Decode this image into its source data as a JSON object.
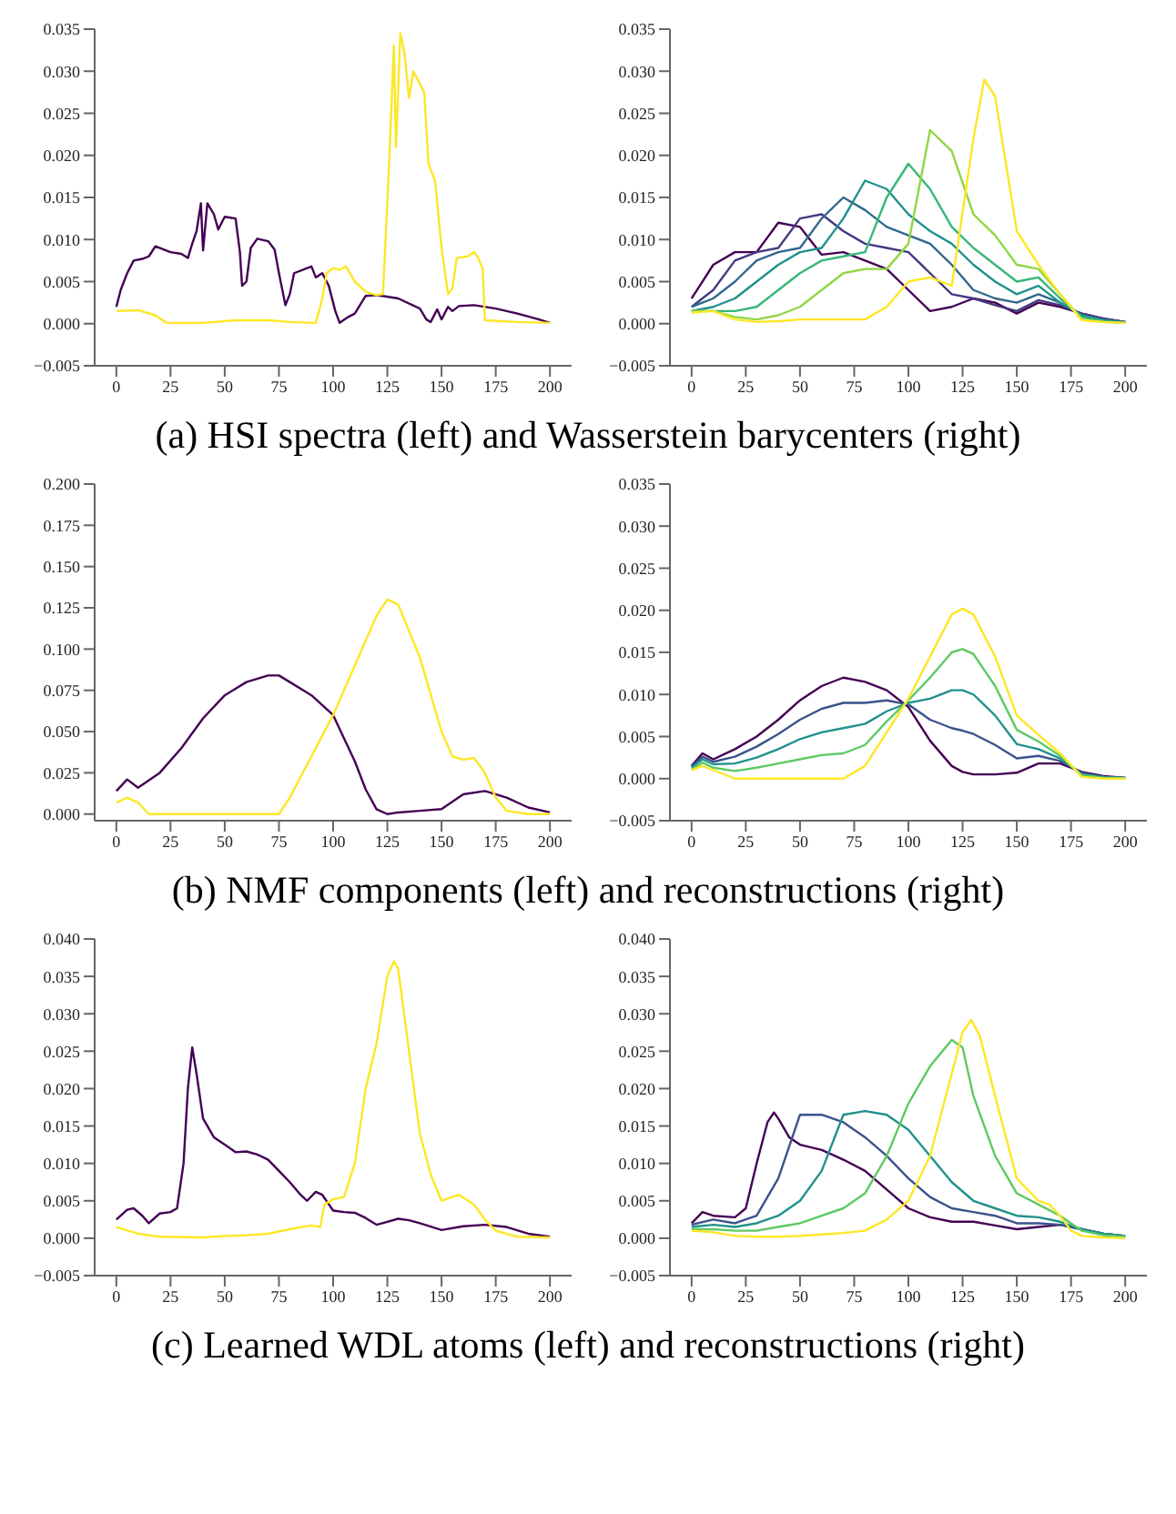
{
  "chart_data": [
    {
      "type": "line",
      "annotations": [
        "(a) HSI spectra (left) and Wasserstein barycenters (right)"
      ],
      "xlim": [
        -10,
        210
      ],
      "xticks": [
        0,
        25,
        50,
        75,
        100,
        125,
        150,
        175,
        200
      ],
      "ylim": [
        -0.005,
        0.035
      ],
      "yticks": [
        {
          "value": -0.005,
          "label": "−0.005"
        },
        {
          "value": 0,
          "label": "0.000"
        },
        {
          "value": 0.005,
          "label": "0.005"
        },
        {
          "value": 0.01,
          "label": "0.010"
        },
        {
          "value": 0.015,
          "label": "0.015"
        },
        {
          "value": 0.02,
          "label": "0.020"
        },
        {
          "value": 0.025,
          "label": "0.025"
        },
        {
          "value": 0.03,
          "label": "0.030"
        },
        {
          "value": 0.035,
          "label": "0.035"
        }
      ],
      "marker": "none",
      "series": [
        {
          "color": "#440154",
          "x": [
            0,
            2,
            5,
            8,
            12,
            15,
            18,
            22,
            25,
            30,
            33,
            35,
            37,
            39,
            40,
            42,
            45,
            47,
            50,
            55,
            57,
            58,
            60,
            62,
            65,
            70,
            73,
            75,
            78,
            80,
            82,
            87,
            90,
            92,
            95,
            98,
            101,
            103,
            107,
            110,
            115,
            120,
            130,
            140,
            143,
            145,
            148,
            150,
            153,
            155,
            158,
            165,
            175,
            185,
            195,
            200
          ],
          "values": [
            0.002,
            0.004,
            0.006,
            0.0075,
            0.0077,
            0.008,
            0.0092,
            0.0088,
            0.0085,
            0.0083,
            0.0078,
            0.0095,
            0.011,
            0.0143,
            0.0087,
            0.0143,
            0.013,
            0.0112,
            0.0127,
            0.0125,
            0.0085,
            0.0045,
            0.005,
            0.009,
            0.0101,
            0.0098,
            0.0088,
            0.006,
            0.0022,
            0.0035,
            0.006,
            0.0065,
            0.0068,
            0.0055,
            0.006,
            0.0045,
            0.0015,
            0.0001,
            0.0008,
            0.0012,
            0.0033,
            0.0034,
            0.003,
            0.0018,
            0.0005,
            0.0002,
            0.0017,
            0.0005,
            0.002,
            0.0015,
            0.0021,
            0.0022,
            0.0018,
            0.0012,
            0.0005,
            0.0001
          ]
        },
        {
          "color": "#fde725",
          "x": [
            0,
            10,
            18,
            23,
            40,
            55,
            70,
            80,
            92,
            95,
            97,
            100,
            103,
            106,
            110,
            115,
            120,
            123,
            126,
            128,
            129,
            131,
            133,
            135,
            137,
            140,
            142,
            144,
            147,
            150,
            153,
            155,
            157,
            162,
            165,
            167,
            169,
            170,
            185,
            200
          ],
          "values": [
            0.0015,
            0.0016,
            0.001,
            0.0001,
            0.0001,
            0.0004,
            0.0004,
            0.0002,
            0.0001,
            0.003,
            0.006,
            0.0066,
            0.0064,
            0.0068,
            0.005,
            0.0038,
            0.0034,
            0.0035,
            0.02,
            0.033,
            0.021,
            0.0345,
            0.032,
            0.0268,
            0.03,
            0.0285,
            0.0275,
            0.019,
            0.017,
            0.009,
            0.0035,
            0.0042,
            0.0078,
            0.008,
            0.0085,
            0.0078,
            0.0065,
            0.0004,
            0.0002,
            0.0001
          ]
        }
      ]
    },
    {
      "type": "line",
      "xlim": [
        -10,
        210
      ],
      "xticks": [
        0,
        25,
        50,
        75,
        100,
        125,
        150,
        175,
        200
      ],
      "ylim": [
        -0.005,
        0.035
      ],
      "yticks": [
        {
          "value": -0.005,
          "label": "−0.005"
        },
        {
          "value": 0,
          "label": "0.000"
        },
        {
          "value": 0.005,
          "label": "0.005"
        },
        {
          "value": 0.01,
          "label": "0.010"
        },
        {
          "value": 0.015,
          "label": "0.015"
        },
        {
          "value": 0.02,
          "label": "0.020"
        },
        {
          "value": 0.025,
          "label": "0.025"
        },
        {
          "value": 0.03,
          "label": "0.030"
        },
        {
          "value": 0.035,
          "label": "0.035"
        }
      ],
      "marker": "none",
      "x": [
        0,
        10,
        20,
        30,
        40,
        50,
        60,
        70,
        80,
        90,
        100,
        110,
        120,
        130,
        140,
        150,
        160,
        170,
        180,
        190,
        200
      ],
      "series": [
        {
          "color": "#440154",
          "values": [
            0.003,
            0.007,
            0.0085,
            0.0085,
            0.012,
            0.0115,
            0.0082,
            0.0085,
            0.0075,
            0.0065,
            0.004,
            0.0015,
            0.002,
            0.003,
            0.0025,
            0.0012,
            0.0025,
            0.002,
            0.0012,
            0.0006,
            0.0002
          ]
        },
        {
          "color": "#443983",
          "values": [
            0.002,
            0.004,
            0.0075,
            0.0085,
            0.009,
            0.0125,
            0.013,
            0.011,
            0.0095,
            0.009,
            0.0085,
            0.006,
            0.0035,
            0.003,
            0.0022,
            0.0015,
            0.0028,
            0.0022,
            0.0012,
            0.0006,
            0.0002
          ]
        },
        {
          "color": "#31688e",
          "values": [
            0.002,
            0.003,
            0.005,
            0.0075,
            0.0085,
            0.009,
            0.0125,
            0.015,
            0.0135,
            0.0115,
            0.0105,
            0.0095,
            0.007,
            0.004,
            0.003,
            0.0025,
            0.0035,
            0.0025,
            0.001,
            0.0005,
            0.0002
          ]
        },
        {
          "color": "#21918c",
          "values": [
            0.0015,
            0.002,
            0.003,
            0.005,
            0.007,
            0.0085,
            0.009,
            0.0125,
            0.017,
            0.016,
            0.013,
            0.011,
            0.0095,
            0.007,
            0.005,
            0.0035,
            0.0045,
            0.0025,
            0.001,
            0.0004,
            0.0001
          ]
        },
        {
          "color": "#35b779",
          "values": [
            0.0015,
            0.0015,
            0.0015,
            0.002,
            0.004,
            0.006,
            0.0075,
            0.008,
            0.0085,
            0.015,
            0.019,
            0.016,
            0.0115,
            0.009,
            0.007,
            0.005,
            0.0055,
            0.003,
            0.0008,
            0.0003,
            0.0001
          ]
        },
        {
          "color": "#90d743",
          "values": [
            0.0015,
            0.0015,
            0.0008,
            0.0005,
            0.001,
            0.002,
            0.004,
            0.006,
            0.0065,
            0.0065,
            0.0095,
            0.023,
            0.0205,
            0.013,
            0.0105,
            0.007,
            0.0065,
            0.0035,
            0.0005,
            0.0002,
            0.0001
          ]
        },
        {
          "color": "#fde725",
          "x": [
            0,
            10,
            20,
            30,
            40,
            50,
            60,
            70,
            80,
            90,
            100,
            110,
            120,
            130,
            135,
            140,
            150,
            160,
            170,
            180,
            190,
            200
          ],
          "values": [
            0.0013,
            0.0015,
            0.0005,
            0.0002,
            0.0003,
            0.0005,
            0.0005,
            0.0005,
            0.0005,
            0.002,
            0.005,
            0.0055,
            0.0045,
            0.022,
            0.029,
            0.027,
            0.011,
            0.007,
            0.0035,
            0.0004,
            0.0002,
            0.0001
          ]
        }
      ]
    },
    {
      "type": "line",
      "annotations": [
        "(b) NMF components (left) and reconstructions (right)"
      ],
      "xlim": [
        -10,
        210
      ],
      "xticks": [
        0,
        25,
        50,
        75,
        100,
        125,
        150,
        175,
        200
      ],
      "ylim": [
        -0.004,
        0.2
      ],
      "yticks": [
        {
          "value": 0,
          "label": "0.000"
        },
        {
          "value": 0.025,
          "label": "0.025"
        },
        {
          "value": 0.05,
          "label": "0.050"
        },
        {
          "value": 0.075,
          "label": "0.075"
        },
        {
          "value": 0.1,
          "label": "0.100"
        },
        {
          "value": 0.125,
          "label": "0.125"
        },
        {
          "value": 0.15,
          "label": "0.150"
        },
        {
          "value": 0.175,
          "label": "0.175"
        },
        {
          "value": 0.2,
          "label": "0.200"
        }
      ],
      "marker": "none",
      "series": [
        {
          "color": "#440154",
          "x": [
            0,
            5,
            10,
            20,
            30,
            40,
            50,
            60,
            70,
            75,
            80,
            90,
            100,
            110,
            115,
            120,
            125,
            130,
            140,
            150,
            160,
            170,
            180,
            190,
            200
          ],
          "values": [
            0.014,
            0.021,
            0.016,
            0.025,
            0.04,
            0.058,
            0.072,
            0.08,
            0.084,
            0.084,
            0.08,
            0.072,
            0.06,
            0.032,
            0.015,
            0.003,
            0,
            0.001,
            0.002,
            0.003,
            0.012,
            0.014,
            0.01,
            0.004,
            0.001
          ]
        },
        {
          "color": "#fde725",
          "x": [
            0,
            5,
            10,
            15,
            70,
            75,
            80,
            90,
            100,
            110,
            120,
            125,
            130,
            140,
            150,
            155,
            160,
            165,
            170,
            175,
            180,
            190,
            200
          ],
          "values": [
            0.007,
            0.01,
            0.007,
            0,
            0,
            0,
            0.01,
            0.035,
            0.06,
            0.09,
            0.12,
            0.13,
            0.127,
            0.095,
            0.05,
            0.035,
            0.033,
            0.034,
            0.025,
            0.01,
            0.002,
            0,
            0
          ]
        }
      ]
    },
    {
      "type": "line",
      "xlim": [
        -10,
        210
      ],
      "xticks": [
        0,
        25,
        50,
        75,
        100,
        125,
        150,
        175,
        200
      ],
      "ylim": [
        -0.005,
        0.035
      ],
      "yticks": [
        {
          "value": -0.005,
          "label": "−0.005"
        },
        {
          "value": 0,
          "label": "0.000"
        },
        {
          "value": 0.005,
          "label": "0.005"
        },
        {
          "value": 0.01,
          "label": "0.010"
        },
        {
          "value": 0.015,
          "label": "0.015"
        },
        {
          "value": 0.02,
          "label": "0.020"
        },
        {
          "value": 0.025,
          "label": "0.025"
        },
        {
          "value": 0.03,
          "label": "0.030"
        },
        {
          "value": 0.035,
          "label": "0.035"
        }
      ],
      "marker": "none",
      "x": [
        0,
        5,
        10,
        20,
        30,
        40,
        50,
        60,
        70,
        80,
        90,
        100,
        110,
        120,
        125,
        130,
        140,
        150,
        160,
        170,
        180,
        190,
        200
      ],
      "series": [
        {
          "color": "#440154",
          "values": [
            0.0015,
            0.003,
            0.0023,
            0.0035,
            0.005,
            0.007,
            0.0093,
            0.011,
            0.012,
            0.0115,
            0.0105,
            0.0085,
            0.0045,
            0.0015,
            0.0008,
            0.0005,
            0.0005,
            0.0007,
            0.0018,
            0.0018,
            0.0008,
            0.0003,
            0.0001
          ]
        },
        {
          "color": "#3b528b",
          "values": [
            0.0014,
            0.0026,
            0.002,
            0.0026,
            0.0038,
            0.0053,
            0.007,
            0.0083,
            0.009,
            0.009,
            0.0093,
            0.0088,
            0.007,
            0.006,
            0.0057,
            0.0053,
            0.004,
            0.0024,
            0.0027,
            0.0021,
            0.0007,
            0.0002,
            0.0001
          ]
        },
        {
          "color": "#21918c",
          "values": [
            0.0013,
            0.0023,
            0.0017,
            0.0018,
            0.0025,
            0.0035,
            0.0047,
            0.0055,
            0.006,
            0.0065,
            0.008,
            0.009,
            0.0095,
            0.0105,
            0.0105,
            0.01,
            0.0075,
            0.0041,
            0.0035,
            0.0024,
            0.0005,
            0.0002,
            0.0001
          ]
        },
        {
          "color": "#5ec962",
          "values": [
            0.0011,
            0.0019,
            0.0013,
            0.0009,
            0.0013,
            0.0018,
            0.0023,
            0.0028,
            0.003,
            0.004,
            0.0068,
            0.0093,
            0.012,
            0.015,
            0.0154,
            0.0148,
            0.011,
            0.0058,
            0.0044,
            0.0027,
            0.0004,
            0.0001,
            0
          ]
        },
        {
          "color": "#fde725",
          "values": [
            0.001,
            0.0015,
            0.001,
            0,
            0,
            0,
            0,
            0,
            0,
            0.0015,
            0.0055,
            0.0095,
            0.0145,
            0.0195,
            0.0202,
            0.0195,
            0.0145,
            0.0075,
            0.0052,
            0.003,
            0.0002,
            0,
            0
          ]
        }
      ]
    },
    {
      "type": "line",
      "annotations": [
        "(c) Learned WDL atoms (left) and reconstructions (right)"
      ],
      "xlim": [
        -10,
        210
      ],
      "xticks": [
        0,
        25,
        50,
        75,
        100,
        125,
        150,
        175,
        200
      ],
      "ylim": [
        -0.005,
        0.04
      ],
      "yticks": [
        {
          "value": -0.005,
          "label": "−0.005"
        },
        {
          "value": 0,
          "label": "0.000"
        },
        {
          "value": 0.005,
          "label": "0.005"
        },
        {
          "value": 0.01,
          "label": "0.010"
        },
        {
          "value": 0.015,
          "label": "0.015"
        },
        {
          "value": 0.02,
          "label": "0.020"
        },
        {
          "value": 0.025,
          "label": "0.025"
        },
        {
          "value": 0.03,
          "label": "0.030"
        },
        {
          "value": 0.035,
          "label": "0.035"
        },
        {
          "value": 0.04,
          "label": "0.040"
        }
      ],
      "marker": "none",
      "series": [
        {
          "color": "#440154",
          "x": [
            0,
            5,
            8,
            12,
            15,
            20,
            25,
            28,
            31,
            33,
            35,
            37,
            40,
            45,
            50,
            55,
            60,
            65,
            70,
            75,
            80,
            85,
            88,
            92,
            95,
            100,
            105,
            110,
            115,
            120,
            125,
            130,
            135,
            140,
            150,
            160,
            170,
            180,
            190,
            200
          ],
          "values": [
            0.0025,
            0.0038,
            0.004,
            0.003,
            0.002,
            0.0033,
            0.0035,
            0.004,
            0.01,
            0.02,
            0.0255,
            0.022,
            0.016,
            0.0135,
            0.0125,
            0.0115,
            0.0116,
            0.0112,
            0.0105,
            0.009,
            0.0075,
            0.0058,
            0.005,
            0.0062,
            0.0058,
            0.0037,
            0.0035,
            0.0034,
            0.0027,
            0.0018,
            0.0022,
            0.0026,
            0.0024,
            0.002,
            0.0011,
            0.0016,
            0.0018,
            0.0015,
            0.0006,
            0.0002
          ]
        },
        {
          "color": "#fde725",
          "x": [
            0,
            10,
            20,
            40,
            50,
            60,
            70,
            80,
            90,
            94,
            96,
            100,
            105,
            110,
            115,
            120,
            125,
            128,
            130,
            135,
            140,
            145,
            150,
            155,
            158,
            165,
            170,
            175,
            185,
            200
          ],
          "values": [
            0.0015,
            0.0006,
            0.0002,
            0.0001,
            0.0003,
            0.0004,
            0.0006,
            0.0012,
            0.0017,
            0.0015,
            0.0045,
            0.0052,
            0.0055,
            0.01,
            0.02,
            0.026,
            0.035,
            0.037,
            0.036,
            0.025,
            0.014,
            0.0085,
            0.005,
            0.0055,
            0.0058,
            0.0045,
            0.0025,
            0.001,
            0.0002,
            0.0001
          ]
        }
      ]
    },
    {
      "type": "line",
      "xlim": [
        -10,
        210
      ],
      "xticks": [
        0,
        25,
        50,
        75,
        100,
        125,
        150,
        175,
        200
      ],
      "ylim": [
        -0.005,
        0.04
      ],
      "yticks": [
        {
          "value": -0.005,
          "label": "−0.005"
        },
        {
          "value": 0,
          "label": "0.000"
        },
        {
          "value": 0.005,
          "label": "0.005"
        },
        {
          "value": 0.01,
          "label": "0.010"
        },
        {
          "value": 0.015,
          "label": "0.015"
        },
        {
          "value": 0.02,
          "label": "0.020"
        },
        {
          "value": 0.025,
          "label": "0.025"
        },
        {
          "value": 0.03,
          "label": "0.030"
        },
        {
          "value": 0.035,
          "label": "0.035"
        },
        {
          "value": 0.04,
          "label": "0.040"
        }
      ],
      "marker": "none",
      "series": [
        {
          "color": "#440154",
          "x": [
            0,
            5,
            10,
            20,
            25,
            30,
            35,
            38,
            40,
            45,
            50,
            60,
            70,
            80,
            90,
            100,
            110,
            120,
            130,
            140,
            150,
            160,
            170,
            180,
            190,
            200
          ],
          "values": [
            0.002,
            0.0035,
            0.003,
            0.0028,
            0.004,
            0.01,
            0.0155,
            0.0168,
            0.016,
            0.0135,
            0.0125,
            0.0118,
            0.0105,
            0.009,
            0.0065,
            0.004,
            0.0028,
            0.0022,
            0.0022,
            0.0017,
            0.0012,
            0.0015,
            0.0018,
            0.0012,
            0.0006,
            0.0003
          ]
        },
        {
          "color": "#3b528b",
          "x": [
            0,
            10,
            20,
            30,
            40,
            50,
            60,
            70,
            80,
            90,
            100,
            110,
            120,
            130,
            140,
            150,
            160,
            170,
            180,
            190,
            200
          ],
          "values": [
            0.0018,
            0.0025,
            0.002,
            0.003,
            0.008,
            0.0165,
            0.0165,
            0.0155,
            0.0135,
            0.011,
            0.008,
            0.0055,
            0.004,
            0.0035,
            0.003,
            0.002,
            0.002,
            0.0018,
            0.0012,
            0.0006,
            0.0003
          ]
        },
        {
          "color": "#21918c",
          "x": [
            0,
            10,
            20,
            30,
            40,
            50,
            60,
            70,
            80,
            90,
            100,
            110,
            120,
            130,
            140,
            150,
            160,
            170,
            180,
            190,
            200
          ],
          "values": [
            0.0015,
            0.0018,
            0.0015,
            0.002,
            0.003,
            0.005,
            0.009,
            0.0165,
            0.017,
            0.0165,
            0.0145,
            0.011,
            0.0075,
            0.005,
            0.004,
            0.003,
            0.0028,
            0.0022,
            0.0012,
            0.0006,
            0.0003
          ]
        },
        {
          "color": "#5ec962",
          "x": [
            0,
            10,
            20,
            30,
            40,
            50,
            60,
            70,
            80,
            90,
            100,
            110,
            120,
            125,
            130,
            140,
            150,
            160,
            170,
            180,
            190,
            200
          ],
          "values": [
            0.0012,
            0.0012,
            0.001,
            0.001,
            0.0015,
            0.002,
            0.003,
            0.004,
            0.006,
            0.011,
            0.018,
            0.023,
            0.0265,
            0.0255,
            0.019,
            0.011,
            0.006,
            0.0045,
            0.003,
            0.001,
            0.0004,
            0.0002
          ]
        },
        {
          "color": "#fde725",
          "x": [
            0,
            10,
            20,
            30,
            40,
            50,
            60,
            70,
            80,
            90,
            100,
            110,
            120,
            125,
            129,
            133,
            140,
            150,
            160,
            165,
            170,
            175,
            180,
            190,
            200
          ],
          "values": [
            0.001,
            0.0008,
            0.0003,
            0.0002,
            0.0002,
            0.0003,
            0.0005,
            0.0007,
            0.001,
            0.0025,
            0.005,
            0.011,
            0.022,
            0.0275,
            0.0292,
            0.027,
            0.019,
            0.008,
            0.005,
            0.0045,
            0.003,
            0.001,
            0.0003,
            0.0001,
            0
          ]
        }
      ]
    }
  ]
}
